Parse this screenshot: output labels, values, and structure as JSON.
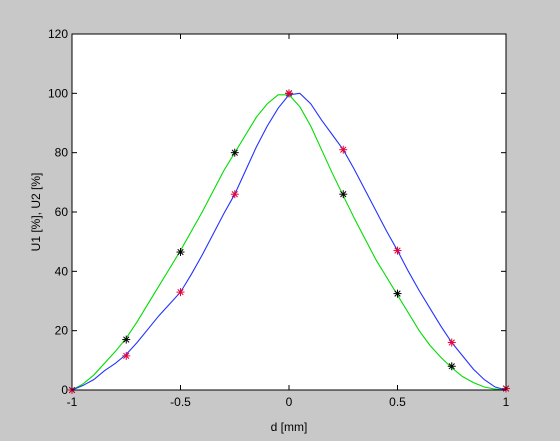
{
  "chart_data": {
    "type": "line",
    "xlabel": "d [mm]",
    "ylabel": "U1 [%], U2 [%]",
    "xlim": [
      -1,
      1
    ],
    "ylim": [
      0,
      120
    ],
    "xticks": [
      -1,
      -0.5,
      0,
      0.5,
      1
    ],
    "xtick_labels": [
      "-1",
      "-0.5",
      "0",
      "0.5",
      "1"
    ],
    "yticks": [
      0,
      20,
      40,
      60,
      80,
      100,
      120
    ],
    "ytick_labels": [
      "0",
      "20",
      "40",
      "60",
      "80",
      "100",
      "120"
    ],
    "grid": false,
    "legend": "none",
    "series": [
      {
        "style": "line",
        "color": "#00dd00",
        "x": [
          -1,
          -0.95,
          -0.9,
          -0.85,
          -0.8,
          -0.75,
          -0.7,
          -0.65,
          -0.6,
          -0.55,
          -0.5,
          -0.45,
          -0.4,
          -0.35,
          -0.3,
          -0.25,
          -0.2,
          -0.15,
          -0.1,
          -0.05,
          0,
          0.05,
          0.1,
          0.15,
          0.2,
          0.25,
          0.3,
          0.35,
          0.4,
          0.45,
          0.5,
          0.55,
          0.6,
          0.65,
          0.7,
          0.75,
          0.8,
          0.85,
          0.9,
          0.95,
          1
        ],
        "y": [
          0,
          2,
          5,
          9,
          13,
          17.5,
          23,
          29,
          35,
          41,
          47,
          53.5,
          60,
          67,
          74,
          80,
          86,
          92,
          96.5,
          99.5,
          99.5,
          95.5,
          89,
          81,
          73,
          65.5,
          58,
          51,
          44,
          38,
          32,
          26,
          20,
          15,
          11,
          7.5,
          4.5,
          2.5,
          1,
          0.3,
          0
        ]
      },
      {
        "style": "line",
        "color": "#2233ff",
        "x": [
          -1,
          -0.95,
          -0.9,
          -0.85,
          -0.8,
          -0.75,
          -0.7,
          -0.65,
          -0.6,
          -0.55,
          -0.5,
          -0.45,
          -0.4,
          -0.35,
          -0.3,
          -0.25,
          -0.2,
          -0.15,
          -0.1,
          -0.05,
          0,
          0.05,
          0.1,
          0.15,
          0.2,
          0.25,
          0.3,
          0.35,
          0.4,
          0.45,
          0.5,
          0.55,
          0.6,
          0.65,
          0.7,
          0.75,
          0.8,
          0.85,
          0.9,
          0.95,
          1
        ],
        "y": [
          0,
          1.5,
          3.5,
          6.5,
          9,
          12,
          16,
          20.5,
          25,
          29,
          33,
          39,
          45.5,
          52.5,
          59.5,
          66,
          74,
          82,
          89,
          95,
          99.5,
          100,
          96.5,
          91,
          86,
          81,
          74.5,
          67.5,
          60.5,
          53.5,
          47,
          40,
          33.5,
          27.5,
          21.5,
          16,
          11.5,
          7,
          3.5,
          1,
          0
        ]
      },
      {
        "style": "markers",
        "marker": "*",
        "color": "#000000",
        "x": [
          -1,
          -0.75,
          -0.5,
          -0.25,
          0,
          0.25,
          0.5,
          0.75,
          1
        ],
        "y": [
          0,
          17,
          46.5,
          80,
          100,
          66,
          32.5,
          8,
          0.5
        ]
      },
      {
        "style": "markers",
        "marker": "*",
        "color": "#e8003c",
        "x": [
          -1,
          -0.75,
          -0.5,
          -0.25,
          0,
          0.25,
          0.5,
          0.75,
          1
        ],
        "y": [
          0,
          11.5,
          33,
          66,
          100,
          81,
          47,
          16,
          0.5
        ]
      }
    ]
  }
}
